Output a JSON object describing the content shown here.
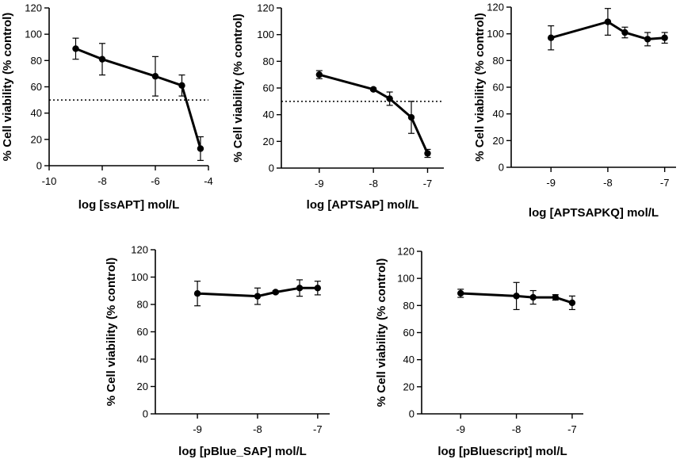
{
  "colors": {
    "ink": "#000000",
    "background": "#ffffff"
  },
  "chart_data": [
    {
      "type": "line",
      "xlabel": "log [ssAPT] mol/L",
      "ylabel": "% Cell viability (% control)",
      "xlim": [
        -10,
        -4
      ],
      "ylim": [
        0,
        120
      ],
      "xticks": [
        -10,
        -8,
        -6,
        -4
      ],
      "yticks": [
        0,
        20,
        40,
        60,
        80,
        100,
        120
      ],
      "reference_line_y": 50,
      "series": [
        {
          "name": "ssAPT",
          "x": [
            -9,
            -8,
            -6,
            -5,
            -4.3
          ],
          "y": [
            89,
            81,
            68,
            61,
            13
          ],
          "err": [
            8,
            12,
            15,
            8,
            9
          ]
        }
      ]
    },
    {
      "type": "line",
      "xlabel": "log [APTSAP] mol/L",
      "ylabel": "% Cell viability (% control)",
      "xlim": [
        -9.7,
        -6.7
      ],
      "ylim": [
        0,
        120
      ],
      "xticks": [
        -9,
        -8,
        -7
      ],
      "yticks": [
        0,
        20,
        40,
        60,
        80,
        100,
        120
      ],
      "reference_line_y": 50,
      "series": [
        {
          "name": "APTSAP",
          "x": [
            -9,
            -8,
            -7.7,
            -7.3,
            -7
          ],
          "y": [
            70,
            59,
            52,
            38,
            11
          ],
          "err": [
            3,
            1,
            5,
            12,
            3
          ]
        }
      ]
    },
    {
      "type": "line",
      "xlabel": "log [APTSAPKQ] mol/L",
      "ylabel": "% Cell viability (% control)",
      "xlim": [
        -9.7,
        -6.8
      ],
      "ylim": [
        0,
        120
      ],
      "xticks": [
        -9,
        -8,
        -7
      ],
      "yticks": [
        0,
        20,
        40,
        60,
        80,
        100,
        120
      ],
      "series": [
        {
          "name": "APTSAPKQ",
          "x": [
            -9,
            -8,
            -7.7,
            -7.3,
            -7
          ],
          "y": [
            97,
            109,
            101,
            96,
            97
          ],
          "err": [
            9,
            10,
            4,
            5,
            4
          ]
        }
      ]
    },
    {
      "type": "line",
      "xlabel": "log [pBlue_SAP] mol/L",
      "ylabel": "% Cell viability (% control)",
      "xlim": [
        -9.7,
        -6.8
      ],
      "ylim": [
        0,
        120
      ],
      "xticks": [
        -9,
        -8,
        -7
      ],
      "yticks": [
        0,
        20,
        40,
        60,
        80,
        100,
        120
      ],
      "series": [
        {
          "name": "pBlue_SAP",
          "x": [
            -9,
            -8,
            -7.7,
            -7.3,
            -7
          ],
          "y": [
            88,
            86,
            89,
            92,
            92
          ],
          "err": [
            9,
            6,
            1,
            6,
            5
          ]
        }
      ]
    },
    {
      "type": "line",
      "xlabel": "log [pBluescript] mol/L",
      "ylabel": "% Cell viability (% control)",
      "xlim": [
        -9.7,
        -6.8
      ],
      "ylim": [
        0,
        120
      ],
      "xticks": [
        -9,
        -8,
        -7
      ],
      "yticks": [
        0,
        20,
        40,
        60,
        80,
        100,
        120
      ],
      "series": [
        {
          "name": "pBluescript",
          "x": [
            -9,
            -8,
            -7.7,
            -7.3,
            -7
          ],
          "y": [
            89,
            87,
            86,
            86,
            82
          ],
          "err": [
            3,
            10,
            5,
            2,
            5
          ]
        }
      ]
    }
  ]
}
